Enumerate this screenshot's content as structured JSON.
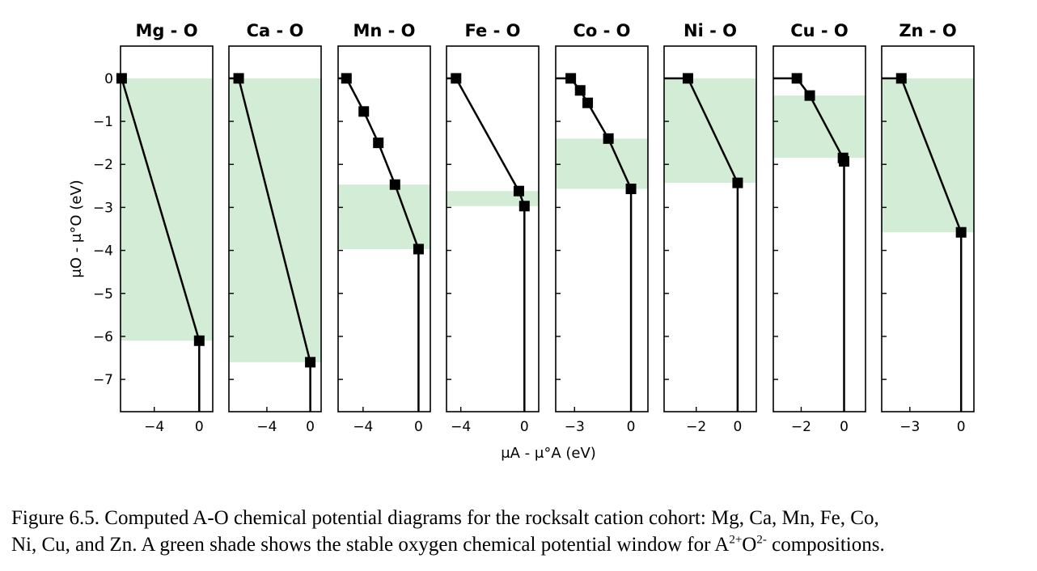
{
  "chart_data": {
    "type": "line",
    "ylabel": "μO - μ°O (eV)",
    "xlabel": "μA - μ°A (eV)",
    "ylim": [
      -7.75,
      0.75
    ],
    "y_ticks": [
      0,
      -1,
      -2,
      -3,
      -4,
      -5,
      -6,
      -7
    ],
    "y_tick_labels": [
      "0",
      "−1",
      "−2",
      "−3",
      "−4",
      "−5",
      "−6",
      "−7"
    ],
    "shade_color": "#d3ecd5",
    "line_color": "#000000",
    "panels": [
      {
        "title": "Mg - O",
        "xlim": [
          -7.0,
          1.2
        ],
        "xticks": [
          -4,
          0
        ],
        "xtick_labels": [
          "−4",
          "0"
        ],
        "points": [
          [
            -6.9,
            0.0
          ],
          [
            0.0,
            -6.1
          ]
        ],
        "shade": [
          -6.1,
          0.0
        ]
      },
      {
        "title": "Ca - O",
        "xlim": [
          -7.5,
          1.0
        ],
        "xticks": [
          -4,
          0
        ],
        "xtick_labels": [
          "−4",
          "0"
        ],
        "points": [
          [
            -6.6,
            0.0
          ],
          [
            0.0,
            -6.6
          ]
        ],
        "shade": [
          -6.6,
          0.0
        ]
      },
      {
        "title": "Mn - O",
        "xlim": [
          -5.8,
          0.85
        ],
        "xticks": [
          -4,
          0
        ],
        "xtick_labels": [
          "−4",
          "0"
        ],
        "points": [
          [
            -5.2,
            0.0
          ],
          [
            -3.95,
            -0.77
          ],
          [
            -2.9,
            -1.5
          ],
          [
            -1.7,
            -2.47
          ],
          [
            0.0,
            -3.97
          ]
        ],
        "shade": [
          -3.97,
          -2.47
        ]
      },
      {
        "title": "Fe - O",
        "xlim": [
          -4.9,
          0.9
        ],
        "xticks": [
          -4,
          0
        ],
        "xtick_labels": [
          "−4",
          "0"
        ],
        "points": [
          [
            -4.3,
            0.0
          ],
          [
            -0.35,
            -2.62
          ],
          [
            0.0,
            -2.97
          ]
        ],
        "shade": [
          -2.97,
          -2.62
        ]
      },
      {
        "title": "Co - O",
        "xlim": [
          -4.0,
          0.9
        ],
        "xticks": [
          -3,
          0
        ],
        "xtick_labels": [
          "−3",
          "0"
        ],
        "points": [
          [
            -3.2,
            0.0
          ],
          [
            -2.7,
            -0.28
          ],
          [
            -2.3,
            -0.57
          ],
          [
            -1.2,
            -1.4
          ],
          [
            0.0,
            -2.57
          ]
        ],
        "shade": [
          -2.57,
          -1.4
        ]
      },
      {
        "title": "Ni - O",
        "xlim": [
          -3.55,
          0.9
        ],
        "xticks": [
          -2,
          0
        ],
        "xtick_labels": [
          "−2",
          "0"
        ],
        "points": [
          [
            -2.4,
            0.0
          ],
          [
            0.0,
            -2.43
          ]
        ],
        "shade": [
          -2.43,
          0.0
        ]
      },
      {
        "title": "Cu - O",
        "xlim": [
          -3.3,
          1.0
        ],
        "xticks": [
          -2,
          0
        ],
        "xtick_labels": [
          "−2",
          "0"
        ],
        "points": [
          [
            -2.2,
            0.0
          ],
          [
            -1.6,
            -0.4
          ],
          [
            -0.05,
            -1.85
          ],
          [
            0.0,
            -1.93
          ]
        ],
        "shade": [
          -1.85,
          -0.4
        ]
      },
      {
        "title": "Zn - O",
        "xlim": [
          -4.65,
          0.75
        ],
        "xticks": [
          -3,
          0
        ],
        "xtick_labels": [
          "−3",
          "0"
        ],
        "points": [
          [
            -3.5,
            0.0
          ],
          [
            0.0,
            -3.58
          ]
        ],
        "shade": [
          -3.58,
          0.0
        ]
      }
    ]
  },
  "caption": {
    "line1": "Figure 6.5. Computed A-O chemical potential diagrams for the rocksalt cation cohort: Mg, Ca, Mn, Fe, Co,",
    "line2_a": "Ni, Cu, and Zn. A green shade shows the stable oxygen chemical potential window for A",
    "sup1": "2+",
    "line2_b": "O",
    "sup2": "2-",
    "line2_c": " compositions."
  }
}
